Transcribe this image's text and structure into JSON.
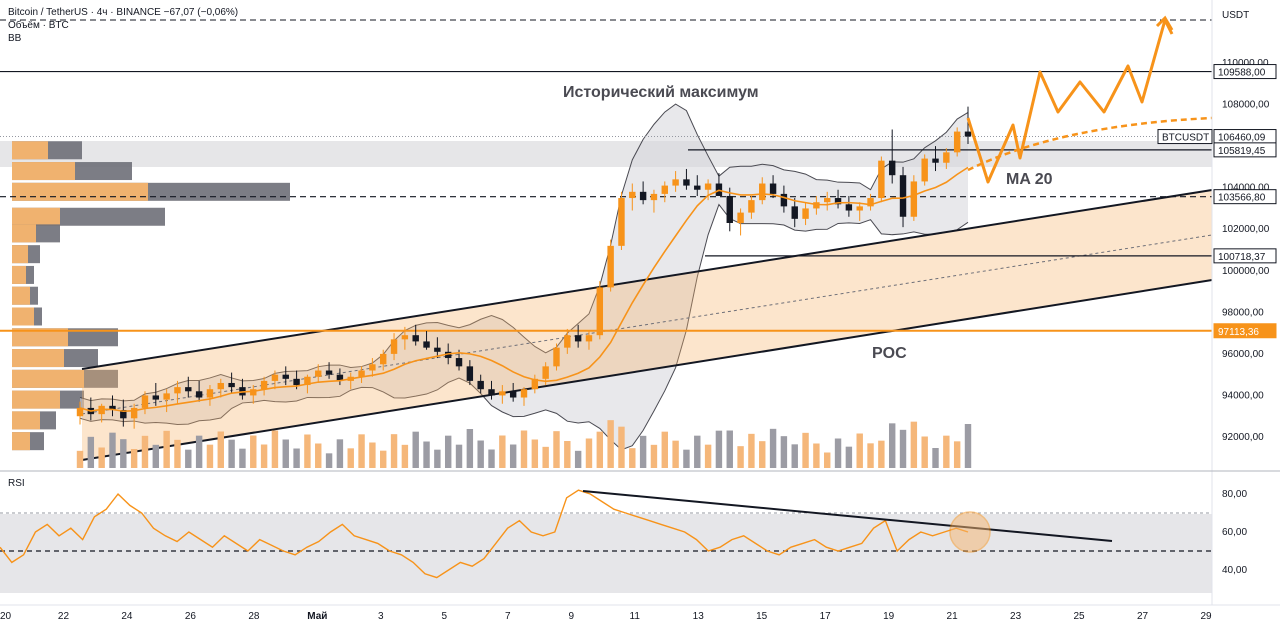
{
  "header": {
    "symbol_line": "Bitcoin / TetherUS · 4ч · BINANCE  −67,07 (−0,06%)",
    "volume_line": "Объём · BTC",
    "bb_line": "BB"
  },
  "chart_data": {
    "type": "candlestick",
    "axis_currency": "USDT",
    "price_ticks": [
      "110000,00",
      "108000,00",
      "104000,00",
      "102000,00",
      "100000,00",
      "98000,00",
      "96000,00",
      "94000,00",
      "92000,00"
    ],
    "price_tick_values": [
      110000,
      108000,
      104000,
      102000,
      100000,
      98000,
      96000,
      94000,
      92000
    ],
    "price_labels": [
      {
        "name": "level-109588",
        "text": "109588,00",
        "value": 109588,
        "color": "#131722",
        "style": "solid"
      },
      {
        "name": "btcusdt-ticker",
        "text": "BTCUSDT",
        "value": 106460.09,
        "color": "#131722",
        "style": "ticker"
      },
      {
        "name": "level-106460",
        "text": "106460,09",
        "value": 106460.09,
        "color": "#131722",
        "style": "dotted"
      },
      {
        "name": "level-105819",
        "text": "105819,45",
        "value": 105819.45,
        "color": "#131722",
        "style": "solid"
      },
      {
        "name": "level-103566",
        "text": "103566,80",
        "value": 103566.8,
        "color": "#131722",
        "style": "dashed"
      },
      {
        "name": "level-100718",
        "text": "100718,37",
        "value": 100718.37,
        "color": "#131722",
        "style": "solid"
      },
      {
        "name": "level-97113",
        "text": "97113,36",
        "value": 97113.36,
        "color": "#f7931a",
        "style": "solid"
      }
    ],
    "rsi_ticks": [
      "80,00",
      "60,00",
      "40,00"
    ],
    "rsi_tick_values": [
      80,
      60,
      40
    ],
    "rsi_title": "RSI",
    "x_ticks": [
      "20",
      "22",
      "24",
      "26",
      "28",
      "Май",
      "3",
      "5",
      "7",
      "9",
      "11",
      "13",
      "15",
      "17",
      "19",
      "21",
      "23",
      "25",
      "27",
      "29"
    ],
    "annotations": {
      "ath": "Исторический максимум",
      "ma": "MA 20",
      "poc": "POC"
    },
    "colors": {
      "up": "#f7931a",
      "down": "#131722",
      "accent": "#f7931a",
      "volume_up": "#f5b77a",
      "volume_down": "#9c9ca4",
      "rsi": "#f7931a"
    },
    "candles": [
      [
        93000,
        93700,
        92600,
        93400
      ],
      [
        93400,
        93900,
        92800,
        93100
      ],
      [
        93100,
        93600,
        92700,
        93500
      ],
      [
        93500,
        94000,
        93000,
        93300
      ],
      [
        93300,
        93800,
        92500,
        92900
      ],
      [
        92900,
        93600,
        92400,
        93400
      ],
      [
        93400,
        94200,
        93100,
        94000
      ],
      [
        94000,
        94600,
        93500,
        93800
      ],
      [
        93800,
        94300,
        93200,
        94100
      ],
      [
        94100,
        94700,
        93600,
        94400
      ],
      [
        94400,
        94900,
        93900,
        94200
      ],
      [
        94200,
        94700,
        93700,
        93900
      ],
      [
        93900,
        94500,
        93500,
        94300
      ],
      [
        94300,
        94800,
        93900,
        94600
      ],
      [
        94600,
        95100,
        94100,
        94400
      ],
      [
        94400,
        94800,
        93800,
        94000
      ],
      [
        94000,
        94500,
        93600,
        94300
      ],
      [
        94300,
        94900,
        94000,
        94700
      ],
      [
        94700,
        95200,
        94300,
        95000
      ],
      [
        95000,
        95400,
        94500,
        94800
      ],
      [
        94800,
        95200,
        94300,
        94500
      ],
      [
        94500,
        95000,
        94100,
        94900
      ],
      [
        94900,
        95500,
        94600,
        95200
      ],
      [
        95200,
        95600,
        94800,
        95000
      ],
      [
        95000,
        95300,
        94500,
        94700
      ],
      [
        94700,
        95100,
        94300,
        94900
      ],
      [
        94900,
        95400,
        94600,
        95200
      ],
      [
        95200,
        95800,
        94900,
        95500
      ],
      [
        95500,
        96200,
        95200,
        96000
      ],
      [
        96000,
        97000,
        95700,
        96700
      ],
      [
        96700,
        97300,
        96200,
        96900
      ],
      [
        96900,
        97400,
        96400,
        96600
      ],
      [
        96600,
        97100,
        96200,
        96300
      ],
      [
        96300,
        96800,
        95800,
        96100
      ],
      [
        96100,
        96500,
        95500,
        95800
      ],
      [
        95800,
        96200,
        95200,
        95400
      ],
      [
        95400,
        95700,
        94500,
        94700
      ],
      [
        94700,
        95000,
        94100,
        94300
      ],
      [
        94300,
        94700,
        93800,
        94000
      ],
      [
        94000,
        94500,
        93600,
        94200
      ],
      [
        94200,
        94600,
        93700,
        93900
      ],
      [
        93900,
        94400,
        93500,
        94300
      ],
      [
        94300,
        95000,
        94100,
        94800
      ],
      [
        94800,
        95600,
        94500,
        95400
      ],
      [
        95400,
        96500,
        95200,
        96300
      ],
      [
        96300,
        97200,
        96000,
        96900
      ],
      [
        96900,
        97400,
        96300,
        96600
      ],
      [
        96600,
        97100,
        96200,
        96900
      ],
      [
        96900,
        99500,
        96700,
        99200
      ],
      [
        99200,
        101500,
        99000,
        101200
      ],
      [
        101200,
        103800,
        101000,
        103500
      ],
      [
        103500,
        104200,
        102900,
        103800
      ],
      [
        103800,
        104300,
        103200,
        103400
      ],
      [
        103400,
        103900,
        102800,
        103700
      ],
      [
        103700,
        104300,
        103300,
        104100
      ],
      [
        104100,
        104800,
        103800,
        104400
      ],
      [
        104400,
        104900,
        103900,
        104100
      ],
      [
        104100,
        104600,
        103600,
        103900
      ],
      [
        103900,
        104400,
        103400,
        104200
      ],
      [
        104200,
        104700,
        103700,
        103600
      ],
      [
        103600,
        104000,
        101900,
        102300
      ],
      [
        102300,
        103000,
        101700,
        102800
      ],
      [
        102800,
        103600,
        102500,
        103400
      ],
      [
        103400,
        104500,
        103200,
        104200
      ],
      [
        104200,
        104600,
        103500,
        103700
      ],
      [
        103700,
        104100,
        102800,
        103100
      ],
      [
        103100,
        103500,
        102100,
        102500
      ],
      [
        102500,
        103300,
        102200,
        103000
      ],
      [
        103000,
        103600,
        102700,
        103300
      ],
      [
        103300,
        103800,
        102900,
        103500
      ],
      [
        103500,
        103900,
        103000,
        103200
      ],
      [
        103200,
        103600,
        102600,
        102900
      ],
      [
        102900,
        103300,
        102400,
        103100
      ],
      [
        103100,
        103700,
        102900,
        103500
      ],
      [
        103500,
        105500,
        103300,
        105300
      ],
      [
        105300,
        106800,
        104200,
        104600
      ],
      [
        104600,
        105000,
        102100,
        102600
      ],
      [
        102600,
        104600,
        102400,
        104300
      ],
      [
        104300,
        105600,
        104100,
        105400
      ],
      [
        105400,
        106000,
        104800,
        105200
      ],
      [
        105200,
        105900,
        104900,
        105700
      ],
      [
        105700,
        106900,
        105500,
        106700
      ],
      [
        106700,
        107900,
        106100,
        106460
      ]
    ],
    "projection": {
      "note": "",
      "target_value": 112000
    },
    "rsi_values": [
      52,
      44,
      48,
      60,
      64,
      58,
      62,
      56,
      68,
      72,
      80,
      74,
      70,
      62,
      58,
      55,
      60,
      56,
      52,
      58,
      54,
      50,
      56,
      53,
      50,
      48,
      52,
      55,
      60,
      64,
      58,
      56,
      54,
      50,
      48,
      44,
      38,
      36,
      40,
      44,
      42,
      46,
      54,
      62,
      66,
      60,
      58,
      60,
      78,
      82,
      80,
      76,
      72,
      70,
      68,
      66,
      64,
      62,
      60,
      56,
      50,
      52,
      56,
      58,
      54,
      50,
      48,
      52,
      54,
      56,
      52,
      50,
      52,
      54,
      62,
      66,
      50,
      56,
      60,
      58,
      60,
      62,
      60
    ]
  }
}
